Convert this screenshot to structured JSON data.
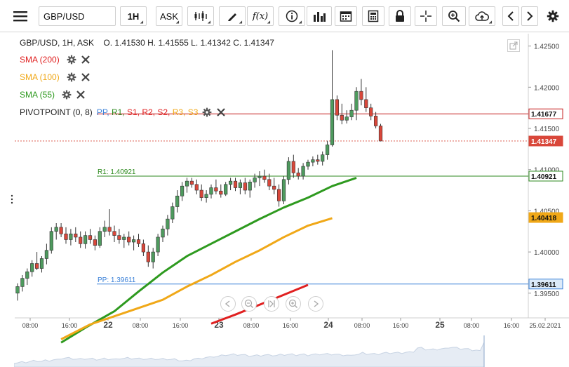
{
  "toolbar": {
    "symbol": "GBP/USD",
    "timeframe": "1H",
    "price_type": "ASK",
    "fx_label": "f(x)",
    "icons": [
      "menu-icon",
      "candles-icon",
      "pencil-icon",
      "function-icon",
      "info-icon",
      "bar-chart-icon",
      "calendar-icon",
      "calculator-icon",
      "lock-icon",
      "crosshair-icon",
      "zoom-icon",
      "cloud-upload-icon",
      "chevron-left-icon",
      "chevron-right-icon",
      "gear-icon"
    ]
  },
  "legend": {
    "title": "GBP/USD, 1H, ASK",
    "ohlc": "O. 1.41530 H. 1.41555 L. 1.41342 C. 1.41347"
  },
  "indicators": [
    {
      "label": "SMA (200)",
      "color": "#e02020"
    },
    {
      "label": "SMA (100)",
      "color": "#f0a818"
    },
    {
      "label": "SMA (55)",
      "color": "#2e9a1f"
    }
  ],
  "pivot": {
    "label": "PIVOTPOINT (0, 8)",
    "levels": [
      {
        "name": "PP",
        "color": "#3a80d8"
      },
      {
        "name": "R1",
        "color": "#2e8a1f"
      },
      {
        "name": "S1",
        "color": "#e02020"
      },
      {
        "name": "R2",
        "color": "#e02020"
      },
      {
        "name": "S2",
        "color": "#e02020"
      },
      {
        "name": "R3",
        "color": "#f0a818"
      },
      {
        "name": "S3",
        "color": "#f0a818"
      }
    ]
  },
  "chart_data": {
    "type": "candlestick",
    "y_ticks": [
      1.395,
      1.4,
      1.405,
      1.41,
      1.415,
      1.42,
      1.425
    ],
    "y_tick_labels": [
      "1.39500",
      "1.40000",
      "1.40500",
      "1.41000",
      "1.41500",
      "1.42000",
      "1.42500"
    ],
    "ylim": [
      1.392,
      1.4265
    ],
    "x_tick_labels": [
      "08:00",
      "16:00",
      "22",
      "08:00",
      "16:00",
      "23",
      "08:00",
      "16:00",
      "24",
      "08:00",
      "16:00",
      "25",
      "08:00",
      "16:00",
      "25.02.2021"
    ],
    "candles": [
      {
        "o": 1.395,
        "h": 1.3962,
        "l": 1.3941,
        "c": 1.3958
      },
      {
        "o": 1.3958,
        "h": 1.3972,
        "l": 1.3952,
        "c": 1.3968
      },
      {
        "o": 1.3968,
        "h": 1.398,
        "l": 1.396,
        "c": 1.3976
      },
      {
        "o": 1.3976,
        "h": 1.399,
        "l": 1.397,
        "c": 1.3986
      },
      {
        "o": 1.3986,
        "h": 1.4,
        "l": 1.3978,
        "c": 1.398
      },
      {
        "o": 1.398,
        "h": 1.3995,
        "l": 1.3975,
        "c": 1.3992
      },
      {
        "o": 1.3992,
        "h": 1.401,
        "l": 1.3985,
        "c": 1.4002
      },
      {
        "o": 1.4002,
        "h": 1.403,
        "l": 1.3998,
        "c": 1.4025
      },
      {
        "o": 1.4025,
        "h": 1.4035,
        "l": 1.4015,
        "c": 1.403
      },
      {
        "o": 1.403,
        "h": 1.4035,
        "l": 1.4018,
        "c": 1.4022
      },
      {
        "o": 1.4022,
        "h": 1.403,
        "l": 1.401,
        "c": 1.4015
      },
      {
        "o": 1.4015,
        "h": 1.4028,
        "l": 1.4008,
        "c": 1.4022
      },
      {
        "o": 1.4022,
        "h": 1.403,
        "l": 1.4012,
        "c": 1.4018
      },
      {
        "o": 1.4018,
        "h": 1.4025,
        "l": 1.4005,
        "c": 1.401
      },
      {
        "o": 1.401,
        "h": 1.4025,
        "l": 1.4004,
        "c": 1.402
      },
      {
        "o": 1.402,
        "h": 1.4028,
        "l": 1.401,
        "c": 1.4015
      },
      {
        "o": 1.4015,
        "h": 1.402,
        "l": 1.4002,
        "c": 1.4008
      },
      {
        "o": 1.4008,
        "h": 1.403,
        "l": 1.4005,
        "c": 1.4025
      },
      {
        "o": 1.4025,
        "h": 1.4038,
        "l": 1.4018,
        "c": 1.403
      },
      {
        "o": 1.403,
        "h": 1.4052,
        "l": 1.402,
        "c": 1.4025
      },
      {
        "o": 1.4025,
        "h": 1.4032,
        "l": 1.4012,
        "c": 1.402
      },
      {
        "o": 1.402,
        "h": 1.4028,
        "l": 1.401,
        "c": 1.4015
      },
      {
        "o": 1.4015,
        "h": 1.4022,
        "l": 1.4005,
        "c": 1.4018
      },
      {
        "o": 1.4018,
        "h": 1.4025,
        "l": 1.4008,
        "c": 1.4012
      },
      {
        "o": 1.4012,
        "h": 1.402,
        "l": 1.4002,
        "c": 1.4015
      },
      {
        "o": 1.4015,
        "h": 1.4022,
        "l": 1.4006,
        "c": 1.401
      },
      {
        "o": 1.401,
        "h": 1.4015,
        "l": 1.3995,
        "c": 1.4
      },
      {
        "o": 1.4,
        "h": 1.4008,
        "l": 1.3982,
        "c": 1.3988
      },
      {
        "o": 1.3988,
        "h": 1.4005,
        "l": 1.398,
        "c": 1.4
      },
      {
        "o": 1.4,
        "h": 1.4022,
        "l": 1.3995,
        "c": 1.4018
      },
      {
        "o": 1.4018,
        "h": 1.4032,
        "l": 1.4012,
        "c": 1.4028
      },
      {
        "o": 1.4028,
        "h": 1.4045,
        "l": 1.402,
        "c": 1.404
      },
      {
        "o": 1.404,
        "h": 1.406,
        "l": 1.4035,
        "c": 1.4055
      },
      {
        "o": 1.4055,
        "h": 1.4075,
        "l": 1.4048,
        "c": 1.4068
      },
      {
        "o": 1.4068,
        "h": 1.4085,
        "l": 1.4062,
        "c": 1.408
      },
      {
        "o": 1.408,
        "h": 1.409,
        "l": 1.4072,
        "c": 1.4086
      },
      {
        "o": 1.4086,
        "h": 1.409,
        "l": 1.4078,
        "c": 1.4082
      },
      {
        "o": 1.4082,
        "h": 1.4088,
        "l": 1.407,
        "c": 1.4075
      },
      {
        "o": 1.4075,
        "h": 1.4082,
        "l": 1.4062,
        "c": 1.4066
      },
      {
        "o": 1.4066,
        "h": 1.4075,
        "l": 1.406,
        "c": 1.407
      },
      {
        "o": 1.407,
        "h": 1.4082,
        "l": 1.4065,
        "c": 1.4078
      },
      {
        "o": 1.4078,
        "h": 1.4088,
        "l": 1.407,
        "c": 1.4074
      },
      {
        "o": 1.4074,
        "h": 1.4082,
        "l": 1.4066,
        "c": 1.407
      },
      {
        "o": 1.407,
        "h": 1.4085,
        "l": 1.4068,
        "c": 1.4082
      },
      {
        "o": 1.4082,
        "h": 1.409,
        "l": 1.4075,
        "c": 1.4086
      },
      {
        "o": 1.4086,
        "h": 1.409,
        "l": 1.4074,
        "c": 1.4078
      },
      {
        "o": 1.4078,
        "h": 1.4088,
        "l": 1.407,
        "c": 1.4084
      },
      {
        "o": 1.4084,
        "h": 1.409,
        "l": 1.407,
        "c": 1.4075
      },
      {
        "o": 1.4075,
        "h": 1.4088,
        "l": 1.4066,
        "c": 1.4085
      },
      {
        "o": 1.4085,
        "h": 1.4095,
        "l": 1.4078,
        "c": 1.409
      },
      {
        "o": 1.409,
        "h": 1.4098,
        "l": 1.408,
        "c": 1.4092
      },
      {
        "o": 1.4092,
        "h": 1.41,
        "l": 1.4084,
        "c": 1.4088
      },
      {
        "o": 1.4088,
        "h": 1.4095,
        "l": 1.4075,
        "c": 1.408
      },
      {
        "o": 1.408,
        "h": 1.409,
        "l": 1.407,
        "c": 1.4076
      },
      {
        "o": 1.4076,
        "h": 1.4082,
        "l": 1.4055,
        "c": 1.4062
      },
      {
        "o": 1.4062,
        "h": 1.4092,
        "l": 1.4058,
        "c": 1.4088
      },
      {
        "o": 1.4088,
        "h": 1.4115,
        "l": 1.4082,
        "c": 1.411
      },
      {
        "o": 1.411,
        "h": 1.4118,
        "l": 1.409,
        "c": 1.4096
      },
      {
        "o": 1.4096,
        "h": 1.4102,
        "l": 1.4088,
        "c": 1.4092
      },
      {
        "o": 1.4092,
        "h": 1.4108,
        "l": 1.4088,
        "c": 1.4104
      },
      {
        "o": 1.4104,
        "h": 1.4112,
        "l": 1.41,
        "c": 1.4109
      },
      {
        "o": 1.4109,
        "h": 1.4116,
        "l": 1.4104,
        "c": 1.4112
      },
      {
        "o": 1.4112,
        "h": 1.4118,
        "l": 1.4106,
        "c": 1.411
      },
      {
        "o": 1.411,
        "h": 1.4122,
        "l": 1.4105,
        "c": 1.4118
      },
      {
        "o": 1.4118,
        "h": 1.4135,
        "l": 1.4112,
        "c": 1.413
      },
      {
        "o": 1.413,
        "h": 1.4245,
        "l": 1.4128,
        "c": 1.4185
      },
      {
        "o": 1.4185,
        "h": 1.419,
        "l": 1.416,
        "c": 1.4166
      },
      {
        "o": 1.4166,
        "h": 1.418,
        "l": 1.4155,
        "c": 1.416
      },
      {
        "o": 1.416,
        "h": 1.4172,
        "l": 1.4156,
        "c": 1.4164
      },
      {
        "o": 1.4164,
        "h": 1.418,
        "l": 1.416,
        "c": 1.4172
      },
      {
        "o": 1.4172,
        "h": 1.42,
        "l": 1.416,
        "c": 1.4195
      },
      {
        "o": 1.4195,
        "h": 1.421,
        "l": 1.4178,
        "c": 1.4185
      },
      {
        "o": 1.4185,
        "h": 1.42,
        "l": 1.417,
        "c": 1.4175
      },
      {
        "o": 1.4175,
        "h": 1.418,
        "l": 1.416,
        "c": 1.4165
      },
      {
        "o": 1.4165,
        "h": 1.417,
        "l": 1.415,
        "c": 1.4153
      },
      {
        "o": 1.4153,
        "h": 1.41555,
        "l": 1.41342,
        "c": 1.41347
      }
    ],
    "sma": [
      {
        "name": "SMA (55)",
        "color": "#2e9a1f",
        "points": [
          [
            9,
            1.389
          ],
          [
            14,
            1.3908
          ],
          [
            20,
            1.3928
          ],
          [
            25,
            1.3952
          ],
          [
            30,
            1.3975
          ],
          [
            35,
            1.3995
          ],
          [
            40,
            1.401
          ],
          [
            45,
            1.4025
          ],
          [
            50,
            1.404
          ],
          [
            55,
            1.4054
          ],
          [
            60,
            1.4066
          ],
          [
            65,
            1.408
          ],
          [
            70,
            1.409
          ]
        ]
      },
      {
        "name": "SMA (100)",
        "color": "#f0a818",
        "points": [
          [
            9,
            1.3894
          ],
          [
            15,
            1.3912
          ],
          [
            20,
            1.3922
          ],
          [
            25,
            1.3932
          ],
          [
            30,
            1.3942
          ],
          [
            35,
            1.3958
          ],
          [
            40,
            1.3972
          ],
          [
            45,
            1.3988
          ],
          [
            50,
            1.4002
          ],
          [
            55,
            1.4018
          ],
          [
            60,
            1.4032
          ],
          [
            65,
            1.4041
          ]
        ]
      },
      {
        "name": "SMA (200)",
        "color": "#e02020",
        "points": [
          [
            40,
            1.3913
          ],
          [
            45,
            1.3924
          ],
          [
            50,
            1.3936
          ],
          [
            55,
            1.3948
          ],
          [
            60,
            1.396
          ]
        ]
      }
    ],
    "pivot_lines": [
      {
        "label": "R1: 1.40921",
        "value": 1.40921,
        "color": "#2e8a1f"
      },
      {
        "label": "PP: 1.39611",
        "value": 1.39611,
        "color": "#3a80d8"
      },
      {
        "label": "",
        "value": 1.41677,
        "color": "#c62020"
      }
    ],
    "price_tags": [
      {
        "text": "1.41677",
        "value": 1.41677,
        "bg": "#fff",
        "fg": "#111",
        "border": "#c62020"
      },
      {
        "text": "1.41347",
        "value": 1.41347,
        "bg": "#d9473a",
        "fg": "#fff",
        "border": "#d9473a"
      },
      {
        "text": "1.40921",
        "value": 1.40921,
        "bg": "#fff",
        "fg": "#111",
        "border": "#2e8a1f"
      },
      {
        "text": "1.40418",
        "value": 1.40418,
        "bg": "#f0a818",
        "fg": "#111",
        "border": "#f0a818"
      },
      {
        "text": "1.39611",
        "value": 1.39611,
        "bg": "#dceaf8",
        "fg": "#111",
        "border": "#3a80d8"
      }
    ]
  }
}
